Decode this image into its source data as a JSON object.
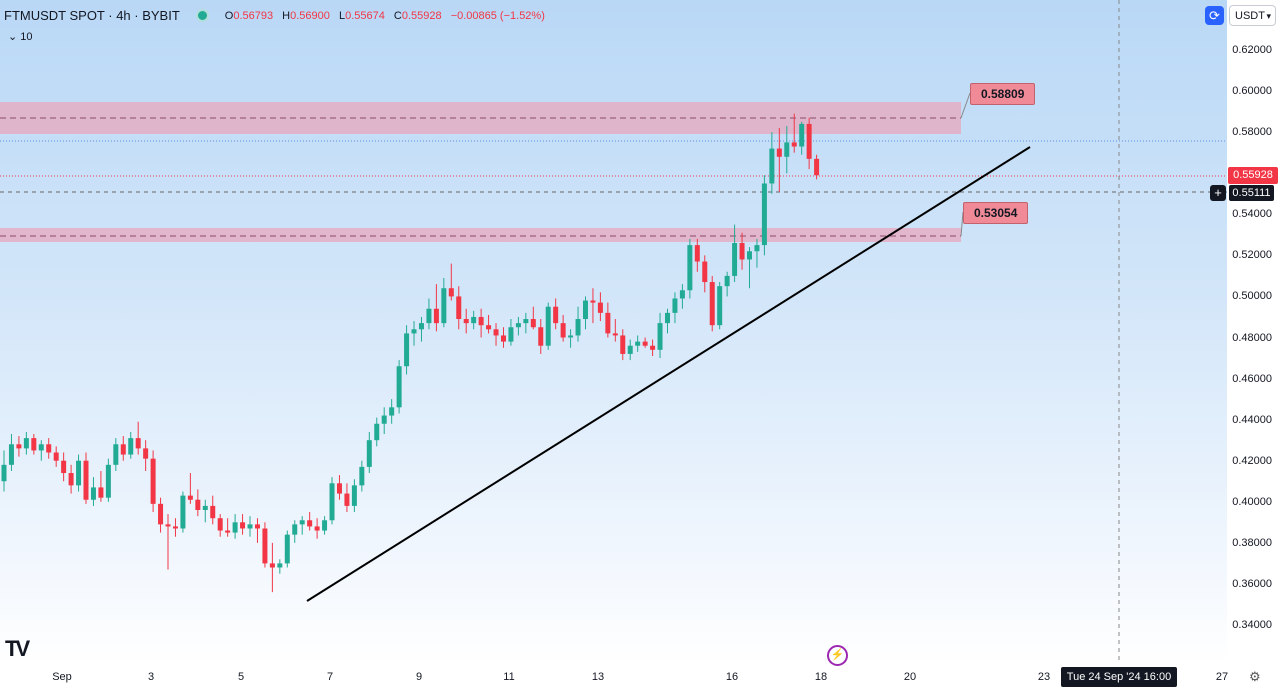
{
  "header": {
    "symbol": "FTMUSDT SPOT · 4h · BYBIT",
    "ohlc": [
      {
        "k": "O",
        "v": "0.56793"
      },
      {
        "k": "H",
        "v": "0.56900"
      },
      {
        "k": "L",
        "v": "0.55674"
      },
      {
        "k": "C",
        "v": "0.55928"
      }
    ],
    "change": "−0.00865 (−1.52%)",
    "indicator": "10"
  },
  "toolbar": {
    "currency": "USDT"
  },
  "price_axis": [
    "0.62000",
    "0.60000",
    "0.58000",
    "0.56000",
    "0.54000",
    "0.52000",
    "0.50000",
    "0.48000",
    "0.46000",
    "0.44000",
    "0.42000",
    "0.40000",
    "0.38000",
    "0.36000",
    "0.34000"
  ],
  "time_axis": [
    "Sep",
    "3",
    "5",
    "7",
    "9",
    "11",
    "13",
    "16",
    "18",
    "20",
    "23",
    "27"
  ],
  "current_price": "0.55928",
  "crosshair_price": "0.55111",
  "crosshair_date": "Tue 24 Sep '24   16:00",
  "levels": {
    "upper": "0.58809",
    "lower": "0.53054"
  },
  "colors": {
    "up": "#22ab94",
    "down": "#f23645",
    "zone": "#e8a7bd",
    "trendline": "#000000"
  },
  "chart_data": {
    "type": "candlestick",
    "series": [
      {
        "name": "FTMUSDT",
        "candles": [
          [
            0.41,
            0.425,
            0.405,
            0.418
          ],
          [
            0.418,
            0.433,
            0.415,
            0.428
          ],
          [
            0.428,
            0.432,
            0.422,
            0.426
          ],
          [
            0.426,
            0.434,
            0.423,
            0.431
          ],
          [
            0.431,
            0.433,
            0.423,
            0.425
          ],
          [
            0.425,
            0.43,
            0.42,
            0.428
          ],
          [
            0.428,
            0.431,
            0.421,
            0.424
          ],
          [
            0.424,
            0.427,
            0.417,
            0.42
          ],
          [
            0.42,
            0.424,
            0.41,
            0.414
          ],
          [
            0.414,
            0.418,
            0.404,
            0.408
          ],
          [
            0.408,
            0.423,
            0.405,
            0.42
          ],
          [
            0.42,
            0.424,
            0.399,
            0.401
          ],
          [
            0.401,
            0.412,
            0.398,
            0.407
          ],
          [
            0.407,
            0.415,
            0.4,
            0.402
          ],
          [
            0.402,
            0.421,
            0.4,
            0.418
          ],
          [
            0.418,
            0.431,
            0.415,
            0.428
          ],
          [
            0.428,
            0.432,
            0.42,
            0.423
          ],
          [
            0.423,
            0.434,
            0.421,
            0.431
          ],
          [
            0.431,
            0.439,
            0.423,
            0.426
          ],
          [
            0.426,
            0.43,
            0.415,
            0.421
          ],
          [
            0.421,
            0.425,
            0.395,
            0.399
          ],
          [
            0.399,
            0.402,
            0.385,
            0.389
          ],
          [
            0.389,
            0.394,
            0.367,
            0.388
          ],
          [
            0.388,
            0.392,
            0.383,
            0.387
          ],
          [
            0.387,
            0.405,
            0.385,
            0.403
          ],
          [
            0.403,
            0.414,
            0.399,
            0.401
          ],
          [
            0.401,
            0.406,
            0.393,
            0.396
          ],
          [
            0.396,
            0.401,
            0.39,
            0.398
          ],
          [
            0.398,
            0.403,
            0.389,
            0.392
          ],
          [
            0.392,
            0.394,
            0.383,
            0.386
          ],
          [
            0.386,
            0.392,
            0.383,
            0.385
          ],
          [
            0.385,
            0.394,
            0.382,
            0.39
          ],
          [
            0.39,
            0.394,
            0.384,
            0.387
          ],
          [
            0.387,
            0.393,
            0.383,
            0.389
          ],
          [
            0.389,
            0.392,
            0.38,
            0.387
          ],
          [
            0.387,
            0.39,
            0.368,
            0.37
          ],
          [
            0.37,
            0.38,
            0.356,
            0.368
          ],
          [
            0.368,
            0.372,
            0.365,
            0.37
          ],
          [
            0.37,
            0.386,
            0.368,
            0.384
          ],
          [
            0.384,
            0.391,
            0.38,
            0.389
          ],
          [
            0.389,
            0.393,
            0.384,
            0.391
          ],
          [
            0.391,
            0.395,
            0.386,
            0.388
          ],
          [
            0.388,
            0.392,
            0.382,
            0.386
          ],
          [
            0.386,
            0.393,
            0.384,
            0.391
          ],
          [
            0.391,
            0.412,
            0.389,
            0.409
          ],
          [
            0.409,
            0.413,
            0.401,
            0.404
          ],
          [
            0.404,
            0.409,
            0.395,
            0.398
          ],
          [
            0.398,
            0.411,
            0.395,
            0.408
          ],
          [
            0.408,
            0.42,
            0.405,
            0.417
          ],
          [
            0.417,
            0.434,
            0.414,
            0.43
          ],
          [
            0.43,
            0.441,
            0.427,
            0.438
          ],
          [
            0.438,
            0.446,
            0.433,
            0.442
          ],
          [
            0.442,
            0.45,
            0.438,
            0.446
          ],
          [
            0.446,
            0.469,
            0.443,
            0.466
          ],
          [
            0.466,
            0.486,
            0.462,
            0.482
          ],
          [
            0.482,
            0.488,
            0.476,
            0.484
          ],
          [
            0.484,
            0.49,
            0.478,
            0.487
          ],
          [
            0.487,
            0.499,
            0.484,
            0.494
          ],
          [
            0.494,
            0.506,
            0.483,
            0.487
          ],
          [
            0.487,
            0.509,
            0.485,
            0.504
          ],
          [
            0.504,
            0.516,
            0.498,
            0.5
          ],
          [
            0.5,
            0.505,
            0.484,
            0.489
          ],
          [
            0.489,
            0.494,
            0.482,
            0.487
          ],
          [
            0.487,
            0.493,
            0.484,
            0.49
          ],
          [
            0.49,
            0.494,
            0.48,
            0.486
          ],
          [
            0.486,
            0.491,
            0.482,
            0.484
          ],
          [
            0.484,
            0.487,
            0.476,
            0.481
          ],
          [
            0.481,
            0.485,
            0.475,
            0.478
          ],
          [
            0.478,
            0.489,
            0.476,
            0.485
          ],
          [
            0.485,
            0.49,
            0.481,
            0.487
          ],
          [
            0.487,
            0.492,
            0.482,
            0.489
          ],
          [
            0.489,
            0.495,
            0.484,
            0.485
          ],
          [
            0.485,
            0.489,
            0.472,
            0.476
          ],
          [
            0.476,
            0.497,
            0.474,
            0.495
          ],
          [
            0.495,
            0.499,
            0.484,
            0.487
          ],
          [
            0.487,
            0.491,
            0.478,
            0.48
          ],
          [
            0.48,
            0.484,
            0.475,
            0.481
          ],
          [
            0.481,
            0.495,
            0.478,
            0.489
          ],
          [
            0.489,
            0.5,
            0.484,
            0.498
          ],
          [
            0.498,
            0.504,
            0.487,
            0.497
          ],
          [
            0.497,
            0.502,
            0.488,
            0.492
          ],
          [
            0.492,
            0.497,
            0.48,
            0.482
          ],
          [
            0.482,
            0.489,
            0.478,
            0.481
          ],
          [
            0.481,
            0.484,
            0.469,
            0.472
          ],
          [
            0.472,
            0.479,
            0.469,
            0.476
          ],
          [
            0.476,
            0.481,
            0.473,
            0.478
          ],
          [
            0.478,
            0.48,
            0.475,
            0.476
          ],
          [
            0.476,
            0.479,
            0.471,
            0.474
          ],
          [
            0.474,
            0.492,
            0.47,
            0.487
          ],
          [
            0.487,
            0.494,
            0.482,
            0.492
          ],
          [
            0.492,
            0.502,
            0.487,
            0.499
          ],
          [
            0.499,
            0.506,
            0.494,
            0.503
          ],
          [
            0.503,
            0.528,
            0.499,
            0.525
          ],
          [
            0.525,
            0.528,
            0.512,
            0.517
          ],
          [
            0.517,
            0.52,
            0.502,
            0.507
          ],
          [
            0.507,
            0.51,
            0.483,
            0.486
          ],
          [
            0.486,
            0.507,
            0.484,
            0.505
          ],
          [
            0.505,
            0.512,
            0.5,
            0.51
          ],
          [
            0.51,
            0.535,
            0.507,
            0.526
          ],
          [
            0.526,
            0.531,
            0.513,
            0.518
          ],
          [
            0.518,
            0.524,
            0.504,
            0.522
          ],
          [
            0.522,
            0.528,
            0.514,
            0.525
          ],
          [
            0.525,
            0.559,
            0.52,
            0.555
          ],
          [
            0.555,
            0.58,
            0.55,
            0.572
          ],
          [
            0.572,
            0.582,
            0.551,
            0.568
          ],
          [
            0.568,
            0.583,
            0.56,
            0.575
          ],
          [
            0.575,
            0.589,
            0.57,
            0.573
          ],
          [
            0.573,
            0.585,
            0.569,
            0.584
          ],
          [
            0.584,
            0.587,
            0.562,
            0.567
          ],
          [
            0.567,
            0.569,
            0.557,
            0.559
          ]
        ]
      }
    ],
    "y_range": [
      0.33,
      0.63
    ],
    "grid": false
  }
}
